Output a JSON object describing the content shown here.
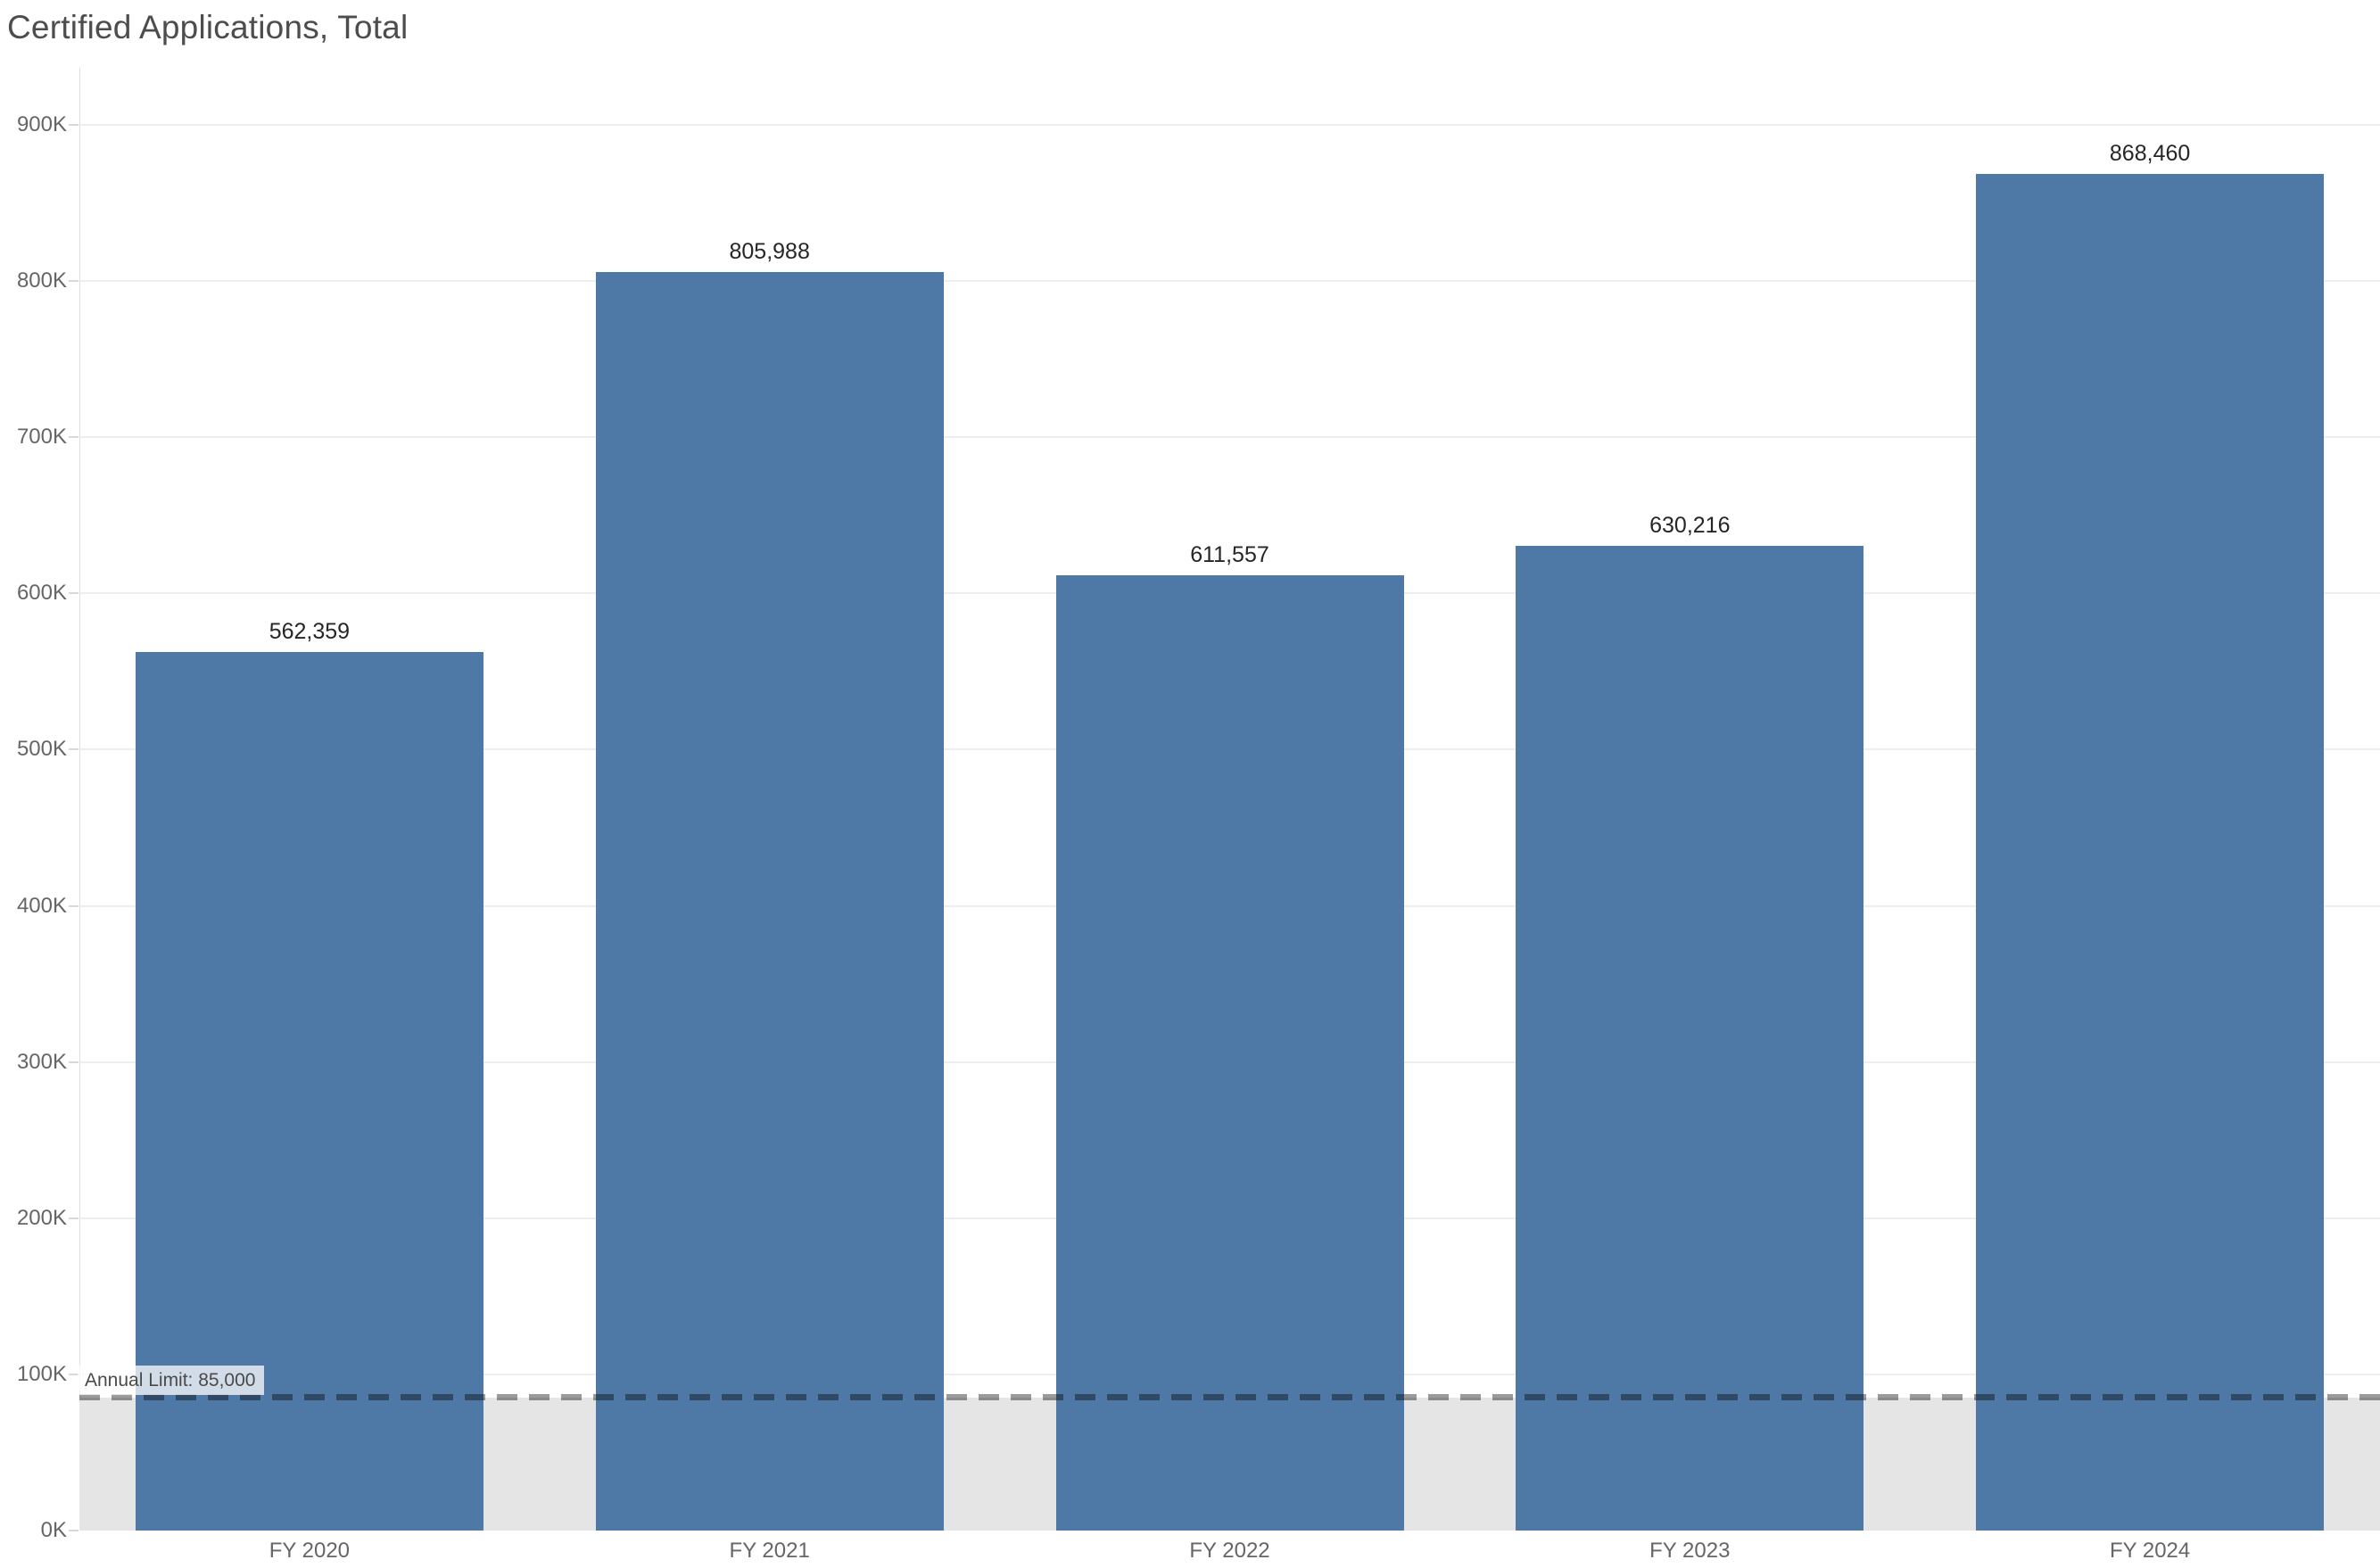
{
  "title": "Certified Applications, Total",
  "annotation": {
    "label": "Annual Limit: 85,000"
  },
  "colors": {
    "bar": "#4e79a7",
    "reference_band": "#e5e5e5",
    "reference_line_dash": "#9b9b9b",
    "gridline": "#eeeeee",
    "axis_line": "#e2e2e2",
    "tick_label_text": "#666666",
    "data_label_text": "#262626",
    "title_text": "#4d4d4d",
    "annotation_text": "#4a4a4a",
    "annotation_background": "rgba(255,255,255,0.74)"
  },
  "chart_data": {
    "type": "bar",
    "title": "Certified Applications, Total",
    "categories": [
      "FY 2020",
      "FY 2021",
      "FY 2022",
      "FY 2023",
      "FY 2024"
    ],
    "values": [
      562359,
      805988,
      611557,
      630216,
      868460
    ],
    "value_labels": [
      "562,359",
      "805,988",
      "611,557",
      "630,216",
      "868,460"
    ],
    "xlabel": "",
    "ylabel": "",
    "ylim": [
      0,
      937000
    ],
    "yticks": [
      0,
      100000,
      200000,
      300000,
      400000,
      500000,
      600000,
      700000,
      800000,
      900000
    ],
    "ytick_labels": [
      "0K",
      "100K",
      "200K",
      "300K",
      "400K",
      "500K",
      "600K",
      "700K",
      "800K",
      "900K"
    ],
    "grid": "horizontal-only",
    "legend": "none",
    "bar_color": "#4e79a7",
    "reference_line": {
      "value": 85000,
      "label": "Annual Limit: 85,000",
      "style": "dashed",
      "shaded_band_below": true
    }
  }
}
